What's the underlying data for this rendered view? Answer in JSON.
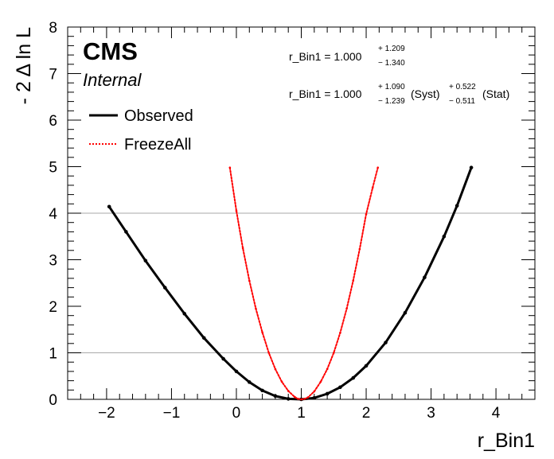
{
  "chart_data": {
    "type": "line",
    "xlabel": "r_Bin1",
    "ylabel": "- 2 Δ ln L",
    "xlim": [
      -2.6,
      4.6
    ],
    "ylim": [
      0,
      8
    ],
    "x_ticks": [
      -2,
      -1,
      0,
      1,
      2,
      3,
      4
    ],
    "x_tick_labels": [
      "−2",
      "−1",
      "0",
      "1",
      "2",
      "3",
      "4"
    ],
    "y_ticks": [
      0,
      1,
      2,
      3,
      4,
      5,
      6,
      7,
      8
    ],
    "y_tick_labels": [
      "0",
      "1",
      "2",
      "3",
      "4",
      "5",
      "6",
      "7",
      "8"
    ],
    "reference_lines_y": [
      1,
      4
    ],
    "legend_position": "top-left",
    "series": [
      {
        "name": "Observed",
        "color": "#000000",
        "style": "solid-with-markers",
        "x": [
          -1.96,
          -1.7,
          -1.4,
          -1.1,
          -0.8,
          -0.5,
          -0.2,
          0.0,
          0.2,
          0.4,
          0.6,
          0.8,
          1.0,
          1.2,
          1.4,
          1.6,
          1.8,
          2.0,
          2.3,
          2.6,
          2.9,
          3.2,
          3.4,
          3.62
        ],
        "y": [
          4.14,
          3.6,
          2.98,
          2.4,
          1.84,
          1.32,
          0.87,
          0.6,
          0.37,
          0.19,
          0.07,
          0.01,
          0.0,
          0.03,
          0.12,
          0.26,
          0.46,
          0.72,
          1.22,
          1.86,
          2.62,
          3.5,
          4.16,
          4.98
        ]
      },
      {
        "name": "FreezeAll",
        "color": "#ff0000",
        "style": "dotted",
        "x": [
          -0.1,
          0.0,
          0.1,
          0.2,
          0.3,
          0.4,
          0.5,
          0.6,
          0.7,
          0.8,
          0.9,
          0.95,
          1.0,
          1.05,
          1.1,
          1.2,
          1.3,
          1.4,
          1.5,
          1.6,
          1.7,
          1.8,
          1.9,
          2.0,
          2.1,
          2.18
        ],
        "y": [
          4.98,
          4.05,
          3.25,
          2.55,
          1.95,
          1.44,
          1.0,
          0.65,
          0.38,
          0.18,
          0.05,
          0.01,
          0.0,
          0.01,
          0.04,
          0.17,
          0.38,
          0.65,
          1.0,
          1.43,
          1.95,
          2.55,
          3.23,
          3.98,
          4.55,
          4.98
        ]
      }
    ]
  },
  "labels": {
    "experiment": "CMS",
    "status": "Internal",
    "result1": {
      "base": "r_Bin1 = 1.000",
      "up": "+ 1.209",
      "down": "− 1.340"
    },
    "result2": {
      "base": "r_Bin1 = 1.000",
      "syst_up": "+ 1.090",
      "syst_down": "− 1.239",
      "syst_label": "(Syst)",
      "stat_up": "+ 0.522",
      "stat_down": "− 0.511",
      "stat_label": "(Stat)"
    }
  }
}
